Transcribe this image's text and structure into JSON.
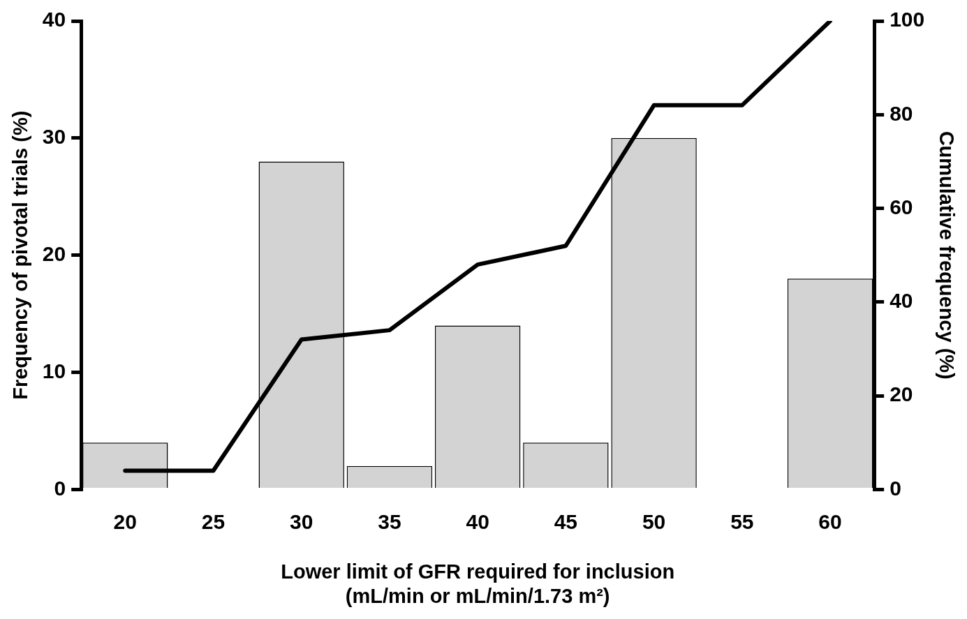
{
  "chart_data": {
    "type": "bar",
    "xlabel": "Lower limit of GFR required for inclusion\n(mL/min or mL/min/1.73 m²)",
    "ylabel": "Frequency of pivotal trials (%)",
    "y2label": "Cumulative frequency (%)",
    "categories": [
      "20",
      "25",
      "30",
      "35",
      "40",
      "45",
      "50",
      "55",
      "60"
    ],
    "series": [
      {
        "color": "#d3d3d3",
        "values": [
          4,
          0,
          28,
          2,
          14,
          4,
          30,
          0,
          18
        ]
      },
      {
        "type": "line",
        "axis": "y2",
        "color": "#000000",
        "values": [
          4,
          4,
          32,
          34,
          48,
          52,
          82,
          82,
          100
        ]
      }
    ],
    "ylim": [
      0,
      40
    ],
    "yticks": [
      0,
      10,
      20,
      30,
      40
    ],
    "y2lim": [
      0,
      100
    ],
    "y2ticks": [
      0,
      20,
      40,
      60,
      80,
      100
    ],
    "grid": false,
    "legend": false,
    "marker": "none",
    "line_style": "solid"
  }
}
